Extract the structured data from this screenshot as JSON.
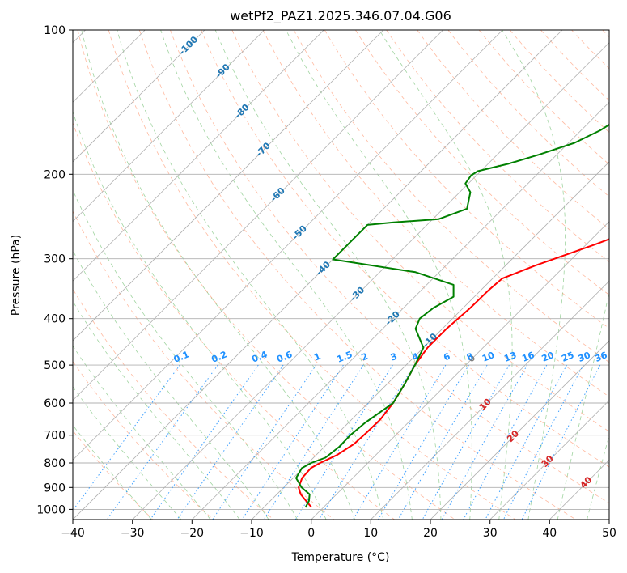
{
  "chart_data": {
    "type": "skew-t",
    "title": "wetPf2_PAZ1.2025.346.07.04.G06",
    "xlabel": "Temperature (°C)",
    "ylabel": "Pressure (hPa)",
    "xlim": [
      -40,
      50
    ],
    "ylim": [
      1050,
      100
    ],
    "x_ticks": [
      -40,
      -30,
      -20,
      -10,
      0,
      10,
      20,
      30,
      40,
      50
    ],
    "y_ticks": [
      100,
      200,
      300,
      400,
      500,
      600,
      700,
      800,
      900,
      1000
    ],
    "colors": {
      "temperature": "#ff0000",
      "dewpoint": "#008000",
      "isotherm_label": "#1f77b4",
      "mixing_ratio": "#1e90ff",
      "dry_adiabat": "#ff7f50",
      "moist_adiabat": "#2ca02c",
      "positive_label": "#d62728",
      "zero_label": "#808080",
      "grid": "#b0b0b0"
    },
    "series": [
      {
        "name": "Temperature",
        "points": [
          [
            -2,
            990
          ],
          [
            -4,
            960
          ],
          [
            -6,
            930
          ],
          [
            -7.5,
            900
          ],
          [
            -8.5,
            860
          ],
          [
            -8.7,
            820
          ],
          [
            -8,
            800
          ],
          [
            -6.5,
            770
          ],
          [
            -5.5,
            730
          ],
          [
            -5.3,
            690
          ],
          [
            -5.2,
            650
          ],
          [
            -5.8,
            600
          ],
          [
            -7,
            550
          ],
          [
            -8.5,
            500
          ],
          [
            -9.3,
            460
          ],
          [
            -9.3,
            420
          ],
          [
            -8.8,
            380
          ],
          [
            -8.7,
            350
          ],
          [
            -8.4,
            330
          ],
          [
            -5,
            310
          ],
          [
            1.5,
            280
          ],
          [
            8,
            250
          ],
          [
            14,
            225
          ],
          [
            21,
            200
          ],
          [
            27.6,
            170
          ],
          [
            31.3,
            150
          ],
          [
            35.5,
            130
          ],
          [
            41.5,
            110
          ],
          [
            43.5,
            104
          ],
          [
            44.4,
            100
          ]
        ]
      },
      {
        "name": "Dewpoint",
        "points": [
          [
            -3,
            990
          ],
          [
            -3.5,
            960
          ],
          [
            -4.5,
            930
          ],
          [
            -7,
            900
          ],
          [
            -9.5,
            860
          ],
          [
            -10.2,
            820
          ],
          [
            -9.5,
            800
          ],
          [
            -8,
            780
          ],
          [
            -7.5,
            740
          ],
          [
            -7.6,
            700
          ],
          [
            -7.2,
            660
          ],
          [
            -5.8,
            600
          ],
          [
            -7,
            550
          ],
          [
            -8.5,
            500
          ],
          [
            -10,
            460
          ],
          [
            -14.5,
            420
          ],
          [
            -15.5,
            400
          ],
          [
            -15,
            380
          ],
          [
            -13.5,
            360
          ],
          [
            -15.5,
            340
          ],
          [
            -24,
            320
          ],
          [
            -40,
            301
          ],
          [
            -40,
            255
          ],
          [
            -36,
            252
          ],
          [
            -29,
            248
          ],
          [
            -26,
            236
          ],
          [
            -28.2,
            218
          ],
          [
            -30.5,
            209
          ],
          [
            -30.9,
            201
          ],
          [
            -30.5,
            197
          ],
          [
            -26.5,
            190
          ],
          [
            -23,
            182
          ],
          [
            -19,
            172
          ],
          [
            -16.8,
            162
          ],
          [
            -15.5,
            152
          ],
          [
            -14,
            142
          ],
          [
            -11.2,
            133
          ],
          [
            -9.8,
            125
          ],
          [
            -7.5,
            115
          ],
          [
            -5,
            106
          ],
          [
            -4.1,
            100
          ]
        ]
      }
    ],
    "isotherm_labels": [
      "-100",
      "-90",
      "-80",
      "-70",
      "-60",
      "-50",
      "-40",
      "-30",
      "-20",
      "-10"
    ],
    "isotherm_label_values": [
      -100,
      -90,
      -80,
      -70,
      -60,
      -50,
      -40,
      -30,
      -20,
      -10
    ],
    "mixing_ratio_labels": [
      "0.1",
      "0.2",
      "0.4",
      "0.6",
      "1",
      "1.5",
      "2",
      "3",
      "4",
      "6",
      "8",
      "10",
      "13",
      "16",
      "20",
      "25",
      "30",
      "36"
    ],
    "mixing_ratio_values": [
      0.1,
      0.2,
      0.4,
      0.6,
      1,
      1.5,
      2,
      3,
      4,
      6,
      8,
      10,
      13,
      16,
      20,
      25,
      30,
      36
    ],
    "warm_isotherm_labels": [
      "0",
      "10",
      "20",
      "30",
      "40"
    ],
    "warm_isotherm_values": [
      0,
      10,
      20,
      30,
      40
    ]
  }
}
